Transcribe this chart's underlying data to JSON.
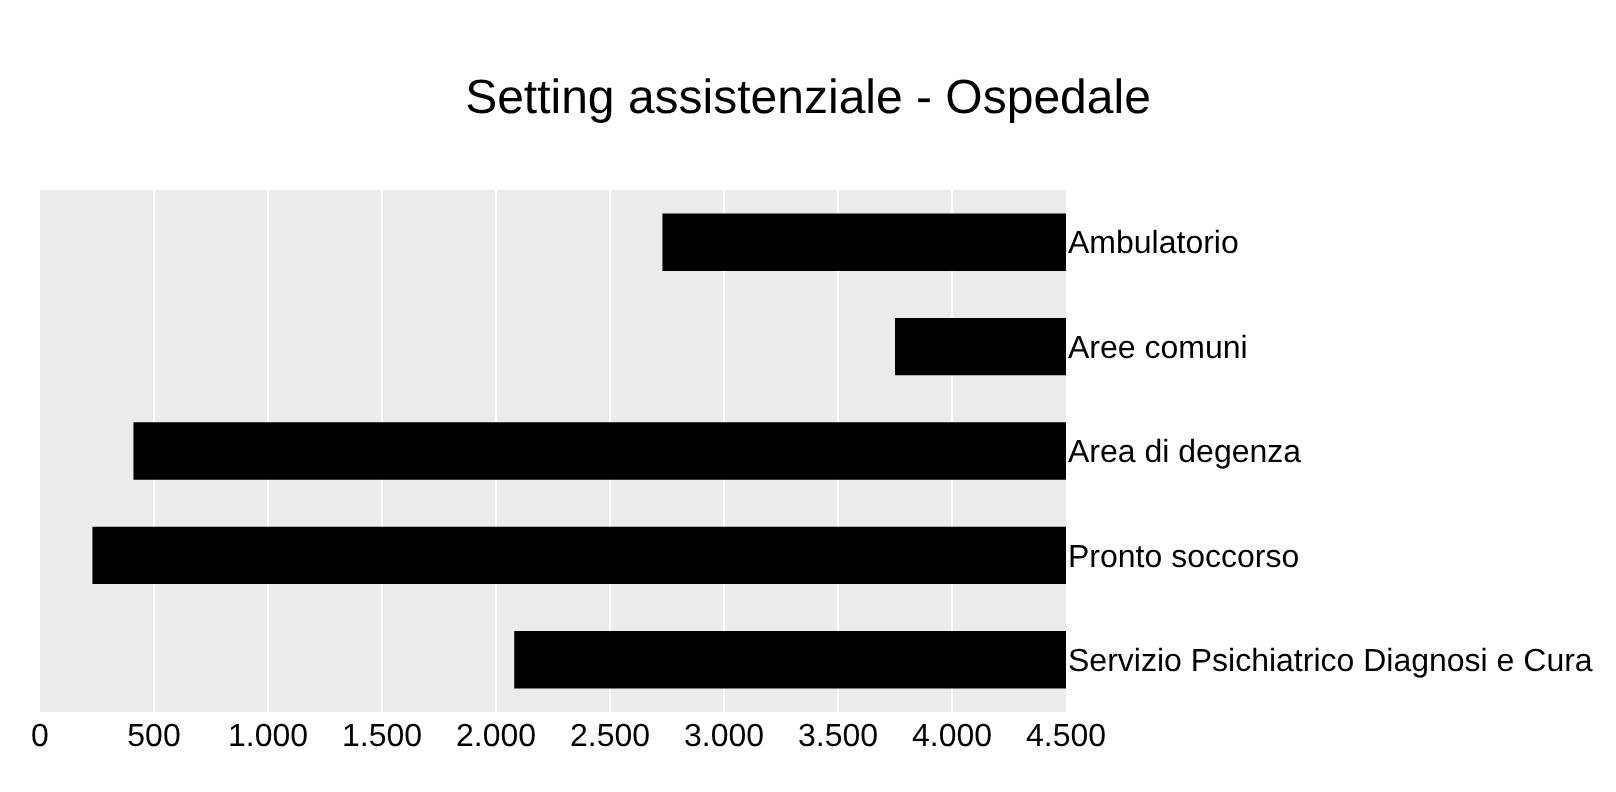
{
  "chart_data": {
    "type": "bar",
    "title": "Setting assistenziale - Ospedale",
    "orientation": "horizontal",
    "categories": [
      "Ambulatorio",
      "Aree comuni",
      "Area di degenza",
      "Pronto soccorso",
      "Servizio Psichiatrico Diagnosi e Cura"
    ],
    "base": [
      2730,
      3750,
      410,
      230,
      2080
    ],
    "values": [
      1770,
      750,
      4090,
      4270,
      2420
    ],
    "color": "#000000",
    "xlim": [
      0,
      4500
    ],
    "xticks": [
      0,
      {
        "value": 500,
        "label": "500"
      },
      {
        "value": 1000,
        "label": "1.000"
      },
      {
        "value": 1500,
        "label": "1.500"
      },
      {
        "value": 2000,
        "label": "2.000"
      },
      {
        "value": 2500,
        "label": "2.500"
      },
      {
        "value": 3000,
        "label": "3.000"
      },
      {
        "value": 3500,
        "label": "3.500"
      },
      {
        "value": 4000,
        "label": "4.000"
      },
      {
        "value": 4500,
        "label": "4.500"
      }
    ],
    "grid": "x",
    "legend": false
  }
}
